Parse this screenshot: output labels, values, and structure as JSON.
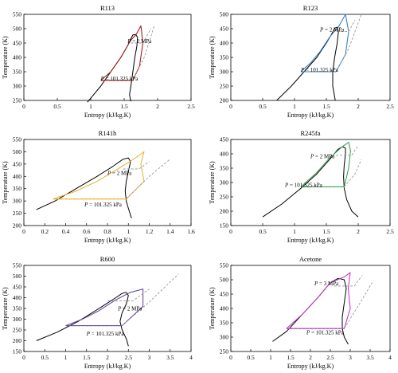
{
  "figure": {
    "background": "#ffffff"
  },
  "chart_data": [
    {
      "type": "line",
      "title": "R113",
      "xlabel": "Entropy (kJ/kg.K)",
      "ylabel": "Temperature (K)",
      "xlim": [
        0,
        2.5
      ],
      "ylim": [
        250,
        550
      ],
      "xticks": [
        "0",
        "0.5",
        "1",
        "1.5",
        "2",
        "2.5"
      ],
      "yticks": [
        "250",
        "300",
        "350",
        "400",
        "450",
        "500",
        "550"
      ],
      "color": "#a3221f",
      "annotations": [
        {
          "text": "P = 2 MPa",
          "x": 1.55,
          "y": 450
        },
        {
          "text": "P = 101.325 kPa",
          "x": 1.15,
          "y": 320
        }
      ],
      "series": [
        {
          "role": "dome",
          "points": [
            [
              0.95,
              244
            ],
            [
              1.15,
              300
            ],
            [
              1.3,
              350
            ],
            [
              1.45,
              400
            ],
            [
              1.55,
              440
            ],
            [
              1.6,
              465
            ],
            [
              1.63,
              478
            ],
            [
              1.67,
              480
            ],
            [
              1.7,
              470
            ],
            [
              1.69,
              440
            ],
            [
              1.66,
              400
            ],
            [
              1.63,
              350
            ],
            [
              1.6,
              300
            ],
            [
              1.58,
              270
            ],
            [
              1.6,
              247
            ]
          ]
        },
        {
          "role": "cycle",
          "points": [
            [
              1.15,
              320
            ],
            [
              1.63,
              320
            ],
            [
              1.73,
              370
            ],
            [
              1.78,
              450
            ],
            [
              1.75,
              510
            ],
            [
              1.68,
              480
            ],
            [
              1.6,
              460
            ],
            [
              1.45,
              400
            ],
            [
              1.3,
              350
            ],
            [
              1.15,
              320
            ]
          ]
        },
        {
          "role": "high-pressure-line",
          "points": [
            [
              1.6,
              450
            ],
            [
              1.78,
              450
            ],
            [
              1.9,
              500
            ]
          ]
        },
        {
          "role": "low-pressure-line",
          "points": [
            [
              1.63,
              320
            ],
            [
              1.8,
              400
            ],
            [
              1.95,
              510
            ]
          ]
        }
      ]
    },
    {
      "type": "line",
      "title": "R123",
      "xlabel": "Entropy (kJ/kg.K)",
      "ylabel": "Temperature (K)",
      "xlim": [
        0,
        2.5
      ],
      "ylim": [
        200,
        500
      ],
      "xticks": [
        "0",
        "0.5",
        "1",
        "1.5",
        "2",
        "2.5"
      ],
      "yticks": [
        "200",
        "250",
        "300",
        "350",
        "400",
        "450",
        "500"
      ],
      "color": "#3c82c4",
      "annotations": [
        {
          "text": "P = 2 MPa",
          "x": 1.4,
          "y": 440
        },
        {
          "text": "P = 101.325 kPa",
          "x": 1.1,
          "y": 300
        }
      ],
      "series": [
        {
          "role": "dome",
          "points": [
            [
              0.72,
              200
            ],
            [
              0.95,
              250
            ],
            [
              1.15,
              300
            ],
            [
              1.35,
              350
            ],
            [
              1.5,
              400
            ],
            [
              1.58,
              430
            ],
            [
              1.63,
              452
            ],
            [
              1.67,
              455
            ],
            [
              1.69,
              440
            ],
            [
              1.67,
              400
            ],
            [
              1.63,
              350
            ],
            [
              1.6,
              300
            ],
            [
              1.6,
              250
            ],
            [
              1.64,
              200
            ]
          ]
        },
        {
          "role": "cycle",
          "points": [
            [
              1.1,
              300
            ],
            [
              1.65,
              300
            ],
            [
              1.8,
              360
            ],
            [
              1.85,
              440
            ],
            [
              1.8,
              500
            ],
            [
              1.7,
              460
            ],
            [
              1.55,
              420
            ],
            [
              1.4,
              370
            ],
            [
              1.25,
              330
            ],
            [
              1.1,
              300
            ]
          ]
        },
        {
          "role": "high-pressure-line",
          "points": [
            [
              1.6,
              440
            ],
            [
              1.85,
              440
            ],
            [
              1.95,
              480
            ]
          ]
        },
        {
          "role": "low-pressure-line",
          "points": [
            [
              1.65,
              300
            ],
            [
              1.85,
              380
            ],
            [
              2.05,
              500
            ]
          ]
        }
      ]
    },
    {
      "type": "line",
      "title": "R141b",
      "xlabel": "Entropy (kJ/kg.K)",
      "ylabel": "Temperature (K)",
      "xlim": [
        0,
        1.6
      ],
      "ylim": [
        200,
        550
      ],
      "xticks": [
        "0",
        "0.2",
        "0.4",
        "0.6",
        "0.8",
        "1",
        "1.2",
        "1.4",
        "1.6"
      ],
      "yticks": [
        "200",
        "250",
        "300",
        "350",
        "400",
        "450",
        "500",
        "550"
      ],
      "color": "#e8b83a",
      "annotations": [
        {
          "text": "P = 2 MPa",
          "x": 0.8,
          "y": 405
        },
        {
          "text": "P = 101.325 kPa",
          "x": 0.58,
          "y": 278
        }
      ],
      "series": [
        {
          "role": "dome",
          "points": [
            [
              0.12,
              265
            ],
            [
              0.3,
              300
            ],
            [
              0.5,
              350
            ],
            [
              0.7,
              400
            ],
            [
              0.85,
              440
            ],
            [
              0.95,
              470
            ],
            [
              1.0,
              475
            ],
            [
              1.02,
              460
            ],
            [
              1.0,
              420
            ],
            [
              0.98,
              380
            ],
            [
              0.97,
              340
            ],
            [
              0.98,
              300
            ],
            [
              1.0,
              270
            ],
            [
              1.03,
              230
            ]
          ]
        },
        {
          "role": "cycle",
          "points": [
            [
              0.28,
              308
            ],
            [
              0.98,
              308
            ],
            [
              1.15,
              380
            ],
            [
              1.12,
              450
            ],
            [
              1.15,
              500
            ],
            [
              1.05,
              470
            ],
            [
              0.9,
              430
            ],
            [
              0.7,
              380
            ],
            [
              0.5,
              340
            ],
            [
              0.28,
              308
            ]
          ]
        },
        {
          "role": "high-pressure-line",
          "points": [
            [
              0.95,
              430
            ],
            [
              1.1,
              430
            ],
            [
              1.2,
              460
            ]
          ]
        },
        {
          "role": "low-pressure-line",
          "points": [
            [
              0.98,
              308
            ],
            [
              1.2,
              400
            ],
            [
              1.4,
              470
            ]
          ]
        }
      ]
    },
    {
      "type": "line",
      "title": "R245fa",
      "xlabel": "Entropy (kJ/kg.K)",
      "ylabel": "Temperature (K)",
      "xlim": [
        0,
        2.5
      ],
      "ylim": [
        150,
        450
      ],
      "xticks": [
        "0",
        "0.5",
        "1",
        "1.5",
        "2",
        "2.5"
      ],
      "yticks": [
        "150",
        "200",
        "250",
        "300",
        "350",
        "400",
        "450"
      ],
      "color": "#3fa35a",
      "annotations": [
        {
          "text": "P = 2 MPa",
          "x": 1.25,
          "y": 385
        },
        {
          "text": "P = 101.325 kPa",
          "x": 0.85,
          "y": 285
        }
      ],
      "series": [
        {
          "role": "dome",
          "points": [
            [
              0.5,
              180
            ],
            [
              0.8,
              225
            ],
            [
              1.1,
              280
            ],
            [
              1.35,
              330
            ],
            [
              1.55,
              380
            ],
            [
              1.68,
              415
            ],
            [
              1.75,
              425
            ],
            [
              1.8,
              420
            ],
            [
              1.8,
              400
            ],
            [
              1.78,
              360
            ],
            [
              1.77,
              320
            ],
            [
              1.78,
              280
            ],
            [
              1.82,
              240
            ],
            [
              1.9,
              200
            ],
            [
              2.0,
              180
            ]
          ]
        },
        {
          "role": "cycle",
          "points": [
            [
              1.1,
              285
            ],
            [
              1.78,
              285
            ],
            [
              1.85,
              350
            ],
            [
              1.88,
              410
            ],
            [
              1.85,
              440
            ],
            [
              1.75,
              425
            ],
            [
              1.55,
              385
            ],
            [
              1.35,
              335
            ],
            [
              1.1,
              285
            ]
          ]
        },
        {
          "role": "high-pressure-line",
          "points": [
            [
              1.65,
              395
            ],
            [
              1.9,
              395
            ],
            [
              2.0,
              430
            ]
          ]
        },
        {
          "role": "low-pressure-line",
          "points": [
            [
              1.78,
              285
            ],
            [
              1.95,
              330
            ],
            [
              2.05,
              380
            ]
          ]
        }
      ]
    },
    {
      "type": "line",
      "title": "R600",
      "xlabel": "Entropy (kJ/kg.K)",
      "ylabel": "Temperature (K)",
      "xlim": [
        0,
        4
      ],
      "ylim": [
        150,
        550
      ],
      "xticks": [
        "0",
        "0.5",
        "1",
        "1.5",
        "2",
        "2.5",
        "3",
        "3.5",
        "4"
      ],
      "yticks": [
        "150",
        "200",
        "250",
        "300",
        "350",
        "400",
        "450",
        "500",
        "550"
      ],
      "color": "#6b4fa0",
      "annotations": [
        {
          "text": "P = 2 MPa",
          "x": 2.25,
          "y": 340
        },
        {
          "text": "P = 101.325 kPa",
          "x": 1.5,
          "y": 225
        }
      ],
      "series": [
        {
          "role": "dome",
          "points": [
            [
              0.3,
              200
            ],
            [
              0.8,
              240
            ],
            [
              1.3,
              290
            ],
            [
              1.8,
              350
            ],
            [
              2.2,
              400
            ],
            [
              2.35,
              420
            ],
            [
              2.45,
              425
            ],
            [
              2.5,
              410
            ],
            [
              2.45,
              370
            ],
            [
              2.35,
              330
            ],
            [
              2.3,
              290
            ],
            [
              2.35,
              250
            ],
            [
              2.45,
              210
            ],
            [
              2.5,
              175
            ]
          ]
        },
        {
          "role": "cycle",
          "points": [
            [
              1.0,
              270
            ],
            [
              2.35,
              270
            ],
            [
              2.85,
              360
            ],
            [
              2.85,
              440
            ],
            [
              2.55,
              425
            ],
            [
              2.2,
              390
            ],
            [
              1.8,
              340
            ],
            [
              1.4,
              300
            ],
            [
              1.0,
              270
            ]
          ]
        },
        {
          "role": "high-pressure-line",
          "points": [
            [
              2.0,
              385
            ],
            [
              2.6,
              385
            ],
            [
              3.0,
              440
            ]
          ]
        },
        {
          "role": "low-pressure-line",
          "points": [
            [
              2.35,
              270
            ],
            [
              3.0,
              380
            ],
            [
              3.7,
              510
            ]
          ]
        }
      ]
    },
    {
      "type": "line",
      "title": "Acetone",
      "xlabel": "Entropy (kJ/kg.K)",
      "ylabel": "Temperature (K)",
      "xlim": [
        0,
        4
      ],
      "ylim": [
        250,
        550
      ],
      "xticks": [
        "0",
        "0.5",
        "1",
        "1.5",
        "2",
        "2.5",
        "3",
        "3.5",
        "4"
      ],
      "yticks": [
        "250",
        "300",
        "350",
        "400",
        "450",
        "500",
        "550"
      ],
      "color": "#c23cc8",
      "annotations": [
        {
          "text": "P = 3 MPa",
          "x": 2.1,
          "y": 480
        },
        {
          "text": "P = 101.325 kPa",
          "x": 1.9,
          "y": 310
        }
      ],
      "series": [
        {
          "role": "dome",
          "points": [
            [
              1.05,
              285
            ],
            [
              1.4,
              320
            ],
            [
              1.8,
              380
            ],
            [
              2.2,
              440
            ],
            [
              2.5,
              490
            ],
            [
              2.7,
              505
            ],
            [
              2.85,
              500
            ],
            [
              2.9,
              470
            ],
            [
              2.85,
              420
            ],
            [
              2.8,
              370
            ],
            [
              2.8,
              330
            ],
            [
              2.85,
              300
            ],
            [
              2.95,
              275
            ]
          ]
        },
        {
          "role": "cycle",
          "points": [
            [
              1.4,
              330
            ],
            [
              2.85,
              330
            ],
            [
              3.0,
              400
            ],
            [
              2.95,
              470
            ],
            [
              3.0,
              525
            ],
            [
              2.85,
              510
            ],
            [
              2.5,
              490
            ],
            [
              2.2,
              440
            ],
            [
              1.8,
              380
            ],
            [
              1.4,
              330
            ]
          ]
        },
        {
          "role": "high-pressure-line",
          "points": [
            [
              2.6,
              478
            ],
            [
              3.1,
              478
            ],
            [
              3.3,
              515
            ]
          ]
        },
        {
          "role": "low-pressure-line",
          "points": [
            [
              2.85,
              330
            ],
            [
              3.25,
              420
            ],
            [
              3.55,
              490
            ]
          ]
        }
      ]
    }
  ]
}
